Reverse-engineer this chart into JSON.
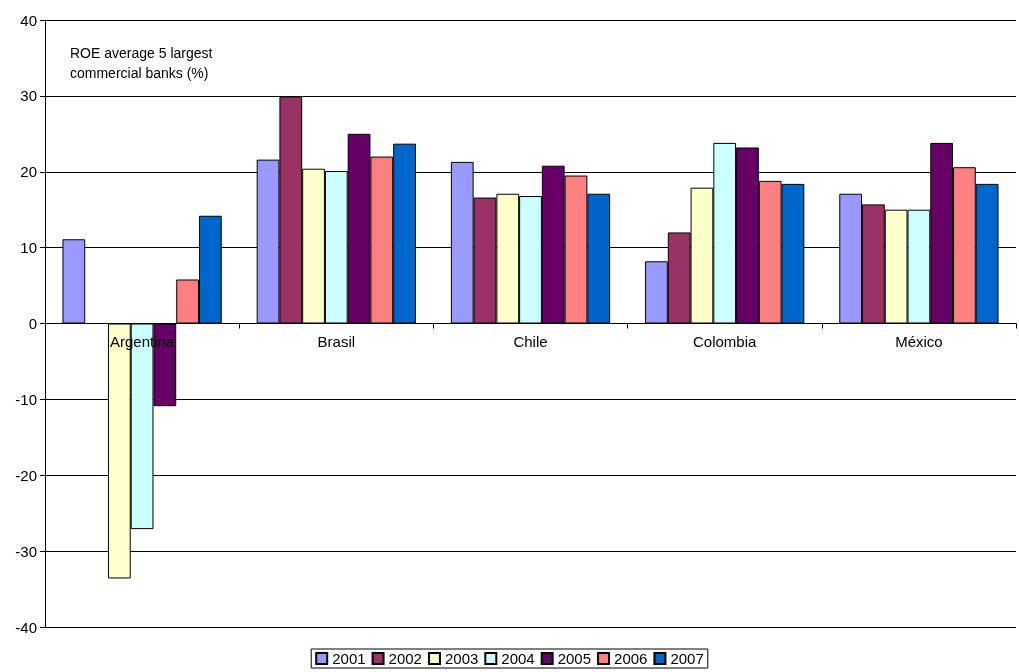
{
  "chart_data": {
    "type": "bar",
    "title": "ROE average 5 largest\ncommercial banks (%)",
    "categories": [
      "Argentina",
      "Brasil",
      "Chile",
      "Colombia",
      "México"
    ],
    "series": [
      {
        "name": "2001",
        "color": "#9999ff",
        "values": [
          11.1,
          21.6,
          21.3,
          8.2,
          17.1
        ]
      },
      {
        "name": "2002",
        "color": "#993366",
        "values": [
          null,
          29.9,
          16.6,
          12,
          15.7
        ]
      },
      {
        "name": "2003",
        "color": "#ffffcc",
        "values": [
          -33.6,
          20.4,
          17.1,
          17.9,
          15
        ]
      },
      {
        "name": "2004",
        "color": "#ccffff",
        "values": [
          -27.1,
          20.1,
          16.8,
          23.8,
          15
        ]
      },
      {
        "name": "2005",
        "color": "#660066",
        "values": [
          -10.9,
          25,
          20.8,
          23.2,
          23.8
        ]
      },
      {
        "name": "2006",
        "color": "#ff8080",
        "values": [
          5.8,
          22,
          19.5,
          18.8,
          20.6
        ]
      },
      {
        "name": "2007",
        "color": "#0066cc",
        "values": [
          14.2,
          23.7,
          17.1,
          18.4,
          18.4
        ]
      }
    ],
    "ylim": [
      -40,
      40
    ],
    "yticks": [
      -40,
      -30,
      -20,
      -10,
      0,
      10,
      20,
      30,
      40
    ],
    "grid": "y",
    "legend": "bottom"
  }
}
